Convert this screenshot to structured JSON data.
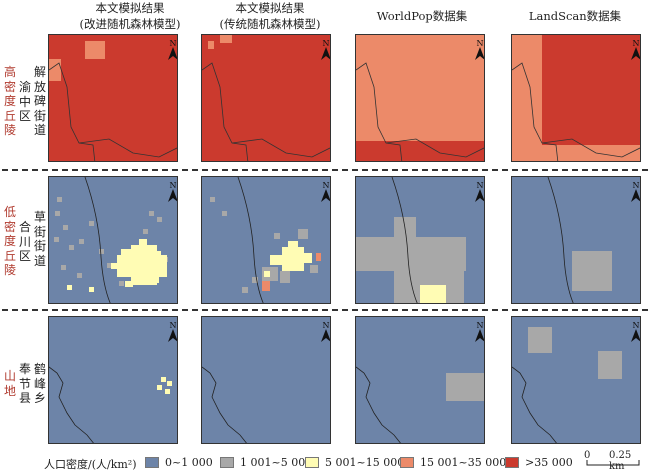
{
  "columns": [
    {
      "line1": "本文模拟结果",
      "line2": "(改进随机森林模型)"
    },
    {
      "line1": "本文模拟结果",
      "line2": "(传统随机森林模型)"
    },
    {
      "line1": "WorldPop数据集",
      "line2": ""
    },
    {
      "line1": "LandScan数据集",
      "line2": ""
    }
  ],
  "rows": [
    {
      "category": "高密度丘陵",
      "district": "渝中区",
      "street": "解放碑街道"
    },
    {
      "category": "低密度丘陵",
      "district": "合川区",
      "street": "草街街道"
    },
    {
      "category": "山地",
      "district": "奉节县",
      "street": "鹤峰乡"
    }
  ],
  "north_label": "N",
  "legend": {
    "title": "人口密度/(人/km²)",
    "items": [
      {
        "label": "0~1 000",
        "color": "#6d84a8"
      },
      {
        "label": "1 001~5 000",
        "color": "#a8a8a8"
      },
      {
        "label": "5 001~15 000",
        "color": "#fffcb4"
      },
      {
        "label": "15 001~35 000",
        "color": "#ec8a69"
      },
      {
        "label": ">35 000",
        "color": "#cb3a2e"
      }
    ]
  },
  "scalebar": {
    "start": "0",
    "end": "0.25 km"
  }
}
